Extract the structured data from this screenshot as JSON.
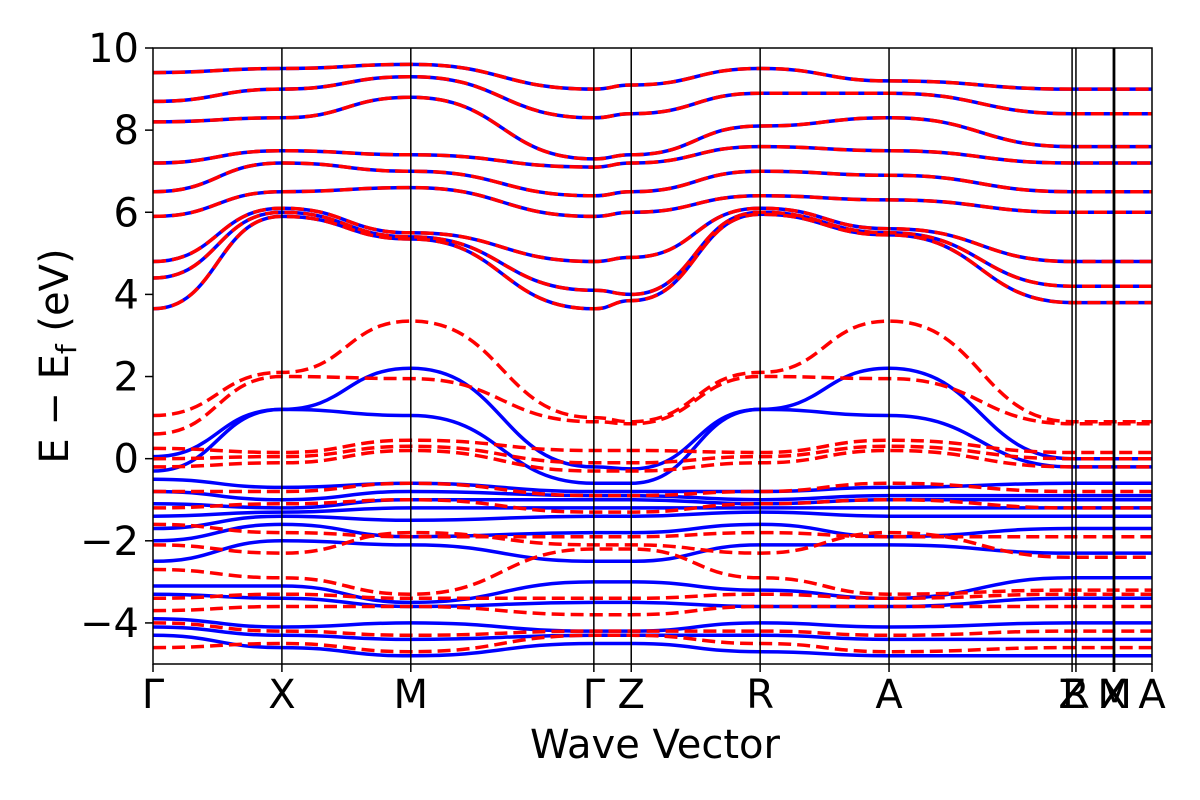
{
  "chart_data": {
    "type": "line",
    "title": "",
    "xlabel": "Wave Vector",
    "ylabel": "E − E",
    "ylabel_subscript": "f",
    "ylabel_unit": " (eV)",
    "ylim": [
      -5,
      10
    ],
    "yticks": [
      -4,
      -2,
      0,
      2,
      4,
      6,
      8,
      10
    ],
    "ytick_labels": [
      "−4",
      "−2",
      "0",
      "2",
      "4",
      "6",
      "8",
      "10"
    ],
    "xlim": [
      0,
      7.75
    ],
    "kpoints": [
      {
        "label": "Γ",
        "x": 0.0
      },
      {
        "label": "X",
        "x": 1.0
      },
      {
        "label": "M",
        "x": 2.0
      },
      {
        "label": "Γ",
        "x": 3.42
      },
      {
        "label": "Z",
        "x": 3.71
      },
      {
        "label": "R",
        "x": 4.71
      },
      {
        "label": "A",
        "x": 5.71
      },
      {
        "label": "Z",
        "x": 7.13
      },
      {
        "label": "R",
        "x": 7.16
      },
      {
        "label": "X",
        "x": 7.45
      },
      {
        "label": "M",
        "x": 7.46
      },
      {
        "label": "A",
        "x": 7.75
      }
    ],
    "legend": "none",
    "grid": false,
    "series": [
      {
        "style": "solid",
        "color": "#0000ff",
        "bands": [
          [
            3.65,
            5.9,
            5.35,
            3.65,
            3.85,
            5.95,
            5.45,
            3.8
          ],
          [
            4.4,
            6.0,
            5.4,
            4.1,
            4.0,
            6.0,
            5.5,
            4.2
          ],
          [
            4.8,
            6.1,
            5.5,
            4.8,
            4.9,
            6.1,
            5.6,
            4.8
          ],
          [
            5.9,
            6.5,
            6.6,
            5.9,
            6.0,
            6.4,
            6.3,
            6.0
          ],
          [
            6.5,
            7.2,
            7.0,
            6.4,
            6.5,
            7.0,
            6.9,
            6.5
          ],
          [
            7.2,
            7.5,
            7.4,
            7.1,
            7.2,
            7.6,
            7.5,
            7.2
          ],
          [
            8.2,
            8.3,
            8.8,
            7.3,
            7.4,
            8.1,
            8.3,
            7.6
          ],
          [
            8.7,
            9.0,
            9.3,
            8.3,
            8.4,
            8.9,
            8.9,
            8.4
          ],
          [
            9.4,
            9.5,
            9.6,
            9.0,
            9.1,
            9.5,
            9.2,
            9.0
          ],
          [
            0.05,
            1.2,
            2.2,
            -0.2,
            -0.25,
            1.2,
            2.2,
            0.0
          ],
          [
            -0.3,
            1.2,
            1.05,
            -0.6,
            -0.6,
            1.2,
            1.05,
            -0.2
          ],
          [
            -0.5,
            -0.7,
            -0.6,
            -0.8,
            -0.8,
            -0.8,
            -0.7,
            -0.6
          ],
          [
            -0.8,
            -1.0,
            -0.8,
            -0.9,
            -0.9,
            -1.0,
            -0.9,
            -0.9
          ],
          [
            -1.1,
            -1.2,
            -1.0,
            -1.0,
            -1.0,
            -1.1,
            -1.0,
            -1.0
          ],
          [
            -1.4,
            -1.3,
            -1.2,
            -1.2,
            -1.2,
            -1.2,
            -1.2,
            -1.2
          ],
          [
            -1.7,
            -1.4,
            -1.5,
            -1.4,
            -1.4,
            -1.3,
            -1.4,
            -1.4
          ],
          [
            -2.0,
            -1.6,
            -1.9,
            -1.8,
            -1.8,
            -1.6,
            -1.9,
            -1.7
          ],
          [
            -2.5,
            -2.0,
            -2.1,
            -2.5,
            -2.5,
            -2.1,
            -2.1,
            -2.3
          ],
          [
            -3.1,
            -3.1,
            -3.5,
            -3.0,
            -3.0,
            -3.2,
            -3.4,
            -2.9
          ],
          [
            -3.3,
            -3.4,
            -3.6,
            -3.5,
            -3.5,
            -3.6,
            -3.6,
            -3.4
          ],
          [
            -3.9,
            -4.1,
            -4.0,
            -4.2,
            -4.2,
            -4.0,
            -4.1,
            -4.0
          ],
          [
            -4.1,
            -4.3,
            -4.4,
            -4.3,
            -4.3,
            -4.3,
            -4.4,
            -4.4
          ],
          [
            -4.3,
            -4.6,
            -4.8,
            -4.5,
            -4.5,
            -4.7,
            -4.8,
            -4.8
          ]
        ]
      },
      {
        "style": "dashed",
        "color": "#ff0000",
        "bands": [
          [
            3.65,
            5.9,
            5.35,
            3.65,
            3.85,
            5.95,
            5.45,
            3.8
          ],
          [
            4.4,
            6.0,
            5.4,
            4.1,
            4.0,
            6.0,
            5.5,
            4.2
          ],
          [
            4.8,
            6.1,
            5.5,
            4.8,
            4.9,
            6.1,
            5.6,
            4.8
          ],
          [
            5.9,
            6.5,
            6.6,
            5.9,
            6.0,
            6.4,
            6.3,
            6.0
          ],
          [
            6.5,
            7.2,
            7.0,
            6.4,
            6.5,
            7.0,
            6.9,
            6.5
          ],
          [
            7.2,
            7.5,
            7.4,
            7.1,
            7.2,
            7.6,
            7.5,
            7.2
          ],
          [
            8.2,
            8.3,
            8.8,
            7.3,
            7.4,
            8.1,
            8.3,
            7.6
          ],
          [
            8.7,
            9.0,
            9.3,
            8.3,
            8.4,
            8.9,
            8.9,
            8.4
          ],
          [
            9.4,
            9.5,
            9.6,
            9.0,
            9.1,
            9.5,
            9.2,
            9.0
          ],
          [
            1.05,
            2.1,
            3.35,
            1.0,
            0.9,
            2.1,
            3.35,
            0.9
          ],
          [
            0.6,
            2.0,
            1.95,
            0.9,
            0.85,
            2.0,
            1.95,
            0.85
          ],
          [
            0.25,
            0.15,
            0.45,
            0.2,
            0.2,
            0.15,
            0.45,
            0.15
          ],
          [
            0.0,
            0.05,
            0.3,
            -0.1,
            -0.1,
            0.05,
            0.3,
            0.0
          ],
          [
            -0.2,
            -0.1,
            0.2,
            -0.3,
            -0.3,
            -0.1,
            0.2,
            -0.2
          ],
          [
            -0.8,
            -0.8,
            -0.6,
            -0.9,
            -0.9,
            -0.8,
            -0.6,
            -0.8
          ],
          [
            -1.2,
            -1.1,
            -1.0,
            -1.3,
            -1.3,
            -1.1,
            -1.0,
            -1.2
          ],
          [
            -1.6,
            -1.8,
            -1.9,
            -1.9,
            -1.9,
            -1.8,
            -1.9,
            -1.9
          ],
          [
            -2.1,
            -2.3,
            -1.8,
            -2.1,
            -2.1,
            -2.3,
            -1.8,
            -2.4
          ],
          [
            -2.7,
            -2.9,
            -3.3,
            -2.2,
            -2.2,
            -2.9,
            -3.3,
            -3.2
          ],
          [
            -3.4,
            -3.3,
            -3.4,
            -3.4,
            -3.4,
            -3.3,
            -3.4,
            -3.3
          ],
          [
            -3.7,
            -3.6,
            -3.6,
            -3.8,
            -3.8,
            -3.6,
            -3.6,
            -3.6
          ],
          [
            -4.0,
            -4.2,
            -4.3,
            -4.2,
            -4.2,
            -4.2,
            -4.3,
            -4.2
          ],
          [
            -4.6,
            -4.5,
            -4.7,
            -4.3,
            -4.3,
            -4.5,
            -4.7,
            -4.6
          ]
        ]
      }
    ]
  }
}
